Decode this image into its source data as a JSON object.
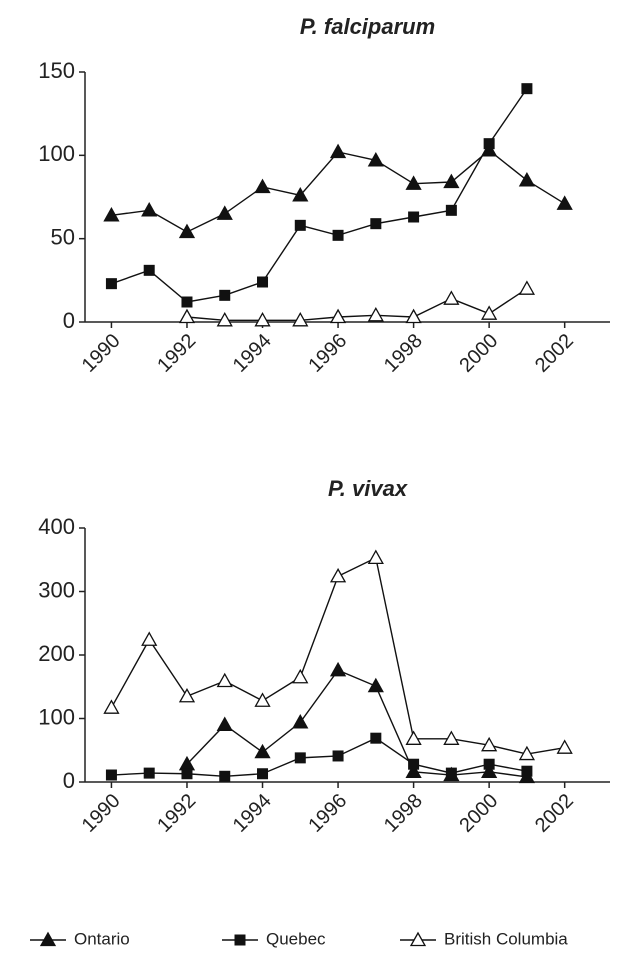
{
  "chart_data": [
    {
      "type": "line",
      "title": "P. falciparum",
      "x": [
        1990,
        1991,
        1992,
        1993,
        1994,
        1995,
        1996,
        1997,
        1998,
        1999,
        2000,
        2001,
        2002
      ],
      "xlim": [
        1989.3,
        2003.2
      ],
      "xticks": [
        1990,
        1992,
        1994,
        1996,
        1998,
        2000,
        2002
      ],
      "ylim": [
        0,
        150
      ],
      "yticks": [
        0,
        50,
        100,
        150
      ],
      "series": [
        {
          "name": "Ontario",
          "color": "#111111",
          "marker": "triangle",
          "values": [
            64,
            67,
            54,
            65,
            81,
            76,
            102,
            97,
            83,
            84,
            103,
            85,
            71
          ]
        },
        {
          "name": "Quebec",
          "color": "#111111",
          "marker": "square",
          "values": [
            23,
            31,
            12,
            16,
            24,
            58,
            52,
            59,
            63,
            67,
            107,
            140,
            null
          ]
        },
        {
          "name": "British Columbia",
          "color": "#111111",
          "marker": "triangle-open",
          "values": [
            null,
            null,
            3,
            1,
            1,
            1,
            3,
            4,
            3,
            14,
            5,
            20,
            null
          ]
        }
      ]
    },
    {
      "type": "line",
      "title": "P. vivax",
      "x": [
        1990,
        1991,
        1992,
        1993,
        1994,
        1995,
        1996,
        1997,
        1998,
        1999,
        2000,
        2001,
        2002
      ],
      "xlim": [
        1989.3,
        2003.2
      ],
      "xticks": [
        1990,
        1992,
        1994,
        1996,
        1998,
        2000,
        2002
      ],
      "ylim": [
        0,
        400
      ],
      "yticks": [
        0,
        100,
        200,
        300,
        400
      ],
      "series": [
        {
          "name": "Ontario",
          "color": "#111111",
          "marker": "triangle",
          "values": [
            null,
            null,
            28,
            90,
            47,
            94,
            176,
            151,
            16,
            11,
            16,
            8,
            null
          ]
        },
        {
          "name": "Quebec",
          "color": "#111111",
          "marker": "square",
          "values": [
            11,
            14,
            13,
            9,
            13,
            38,
            41,
            69,
            28,
            14,
            28,
            17,
            null
          ]
        },
        {
          "name": "British Columbia",
          "color": "#111111",
          "marker": "triangle-open",
          "values": [
            117,
            224,
            135,
            159,
            128,
            165,
            324,
            353,
            68,
            68,
            58,
            44,
            54
          ]
        }
      ]
    }
  ]
}
